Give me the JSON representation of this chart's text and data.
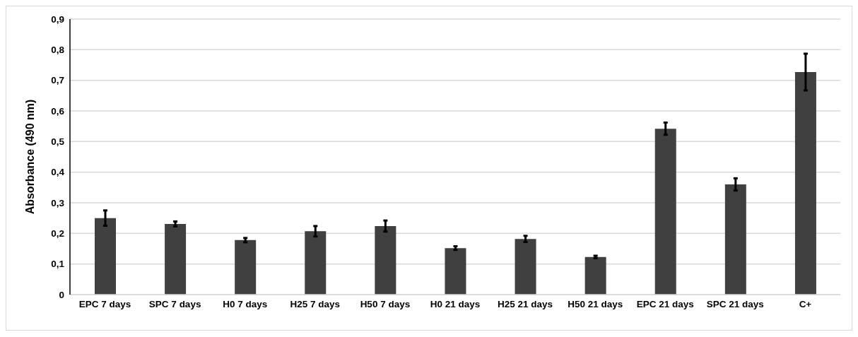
{
  "chart_data": {
    "type": "bar",
    "ylabel": "Absorbance (490 nm)",
    "categories": [
      "EPC 7 days",
      "SPC 7 days",
      "H0 7 days",
      "H25 7 days",
      "H50 7 days",
      "H0 21 days",
      "H25 21 days",
      "H50 21 days",
      "EPC 21 days",
      "SPC 21 days",
      "C+"
    ],
    "values": [
      0.25,
      0.231,
      0.178,
      0.207,
      0.224,
      0.152,
      0.182,
      0.123,
      0.542,
      0.36,
      0.727
    ],
    "errors": [
      0.025,
      0.008,
      0.007,
      0.017,
      0.018,
      0.006,
      0.01,
      0.004,
      0.02,
      0.02,
      0.06
    ],
    "color": "#404040",
    "ylim": [
      0,
      0.9
    ],
    "yticks": [
      0,
      {
        "value": 0.1,
        "label": "0,1"
      },
      {
        "value": 0.2,
        "label": "0,2"
      },
      {
        "value": 0.3,
        "label": "0,3"
      },
      {
        "value": 0.4,
        "label": "0,4"
      },
      {
        "value": 0.5,
        "label": "0,5"
      },
      {
        "value": 0.6,
        "label": "0,6"
      },
      {
        "value": 0.7,
        "label": "0,7"
      },
      {
        "value": 0.8,
        "label": "0,8"
      },
      {
        "value": 0.9,
        "label": "0,9"
      }
    ],
    "grid": "y"
  }
}
